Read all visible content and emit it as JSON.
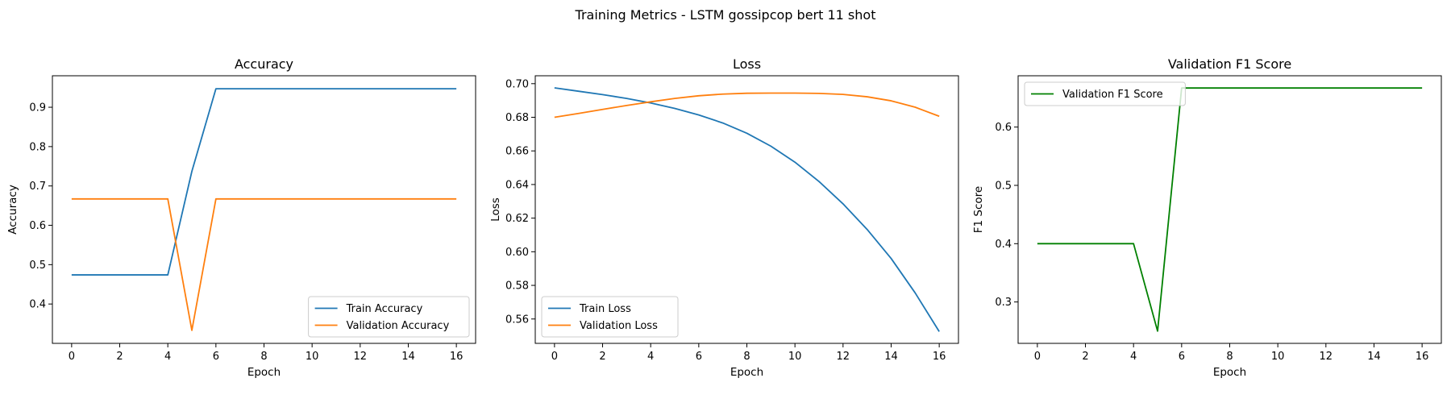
{
  "figure_title": "Training Metrics - LSTM gossipcop bert 11 shot",
  "chart_data": [
    {
      "type": "line",
      "title": "Accuracy",
      "xlabel": "Epoch",
      "ylabel": "Accuracy",
      "xlim": [
        -0.8,
        16.8
      ],
      "ylim": [
        0.3,
        0.98
      ],
      "xticks": [
        0,
        2,
        4,
        6,
        8,
        10,
        12,
        14,
        16
      ],
      "yticks": [
        0.4,
        0.5,
        0.6,
        0.7,
        0.8,
        0.9
      ],
      "ytick_labels": [
        "0.4",
        "0.5",
        "0.6",
        "0.7",
        "0.8",
        "0.9"
      ],
      "legend_loc": "lower-right",
      "x": [
        0,
        1,
        2,
        3,
        4,
        5,
        6,
        7,
        8,
        9,
        10,
        11,
        12,
        13,
        14,
        15,
        16
      ],
      "series": [
        {
          "name": "Train Accuracy",
          "color": "#1f77b4",
          "values": [
            0.474,
            0.474,
            0.474,
            0.474,
            0.474,
            0.737,
            0.947,
            0.947,
            0.947,
            0.947,
            0.947,
            0.947,
            0.947,
            0.947,
            0.947,
            0.947,
            0.947
          ]
        },
        {
          "name": "Validation Accuracy",
          "color": "#ff7f0e",
          "values": [
            0.667,
            0.667,
            0.667,
            0.667,
            0.667,
            0.333,
            0.667,
            0.667,
            0.667,
            0.667,
            0.667,
            0.667,
            0.667,
            0.667,
            0.667,
            0.667,
            0.667
          ]
        }
      ]
    },
    {
      "type": "line",
      "title": "Loss",
      "xlabel": "Epoch",
      "ylabel": "Loss",
      "xlim": [
        -0.8,
        16.8
      ],
      "ylim": [
        0.5455,
        0.7047
      ],
      "xticks": [
        0,
        2,
        4,
        6,
        8,
        10,
        12,
        14,
        16
      ],
      "yticks": [
        0.56,
        0.58,
        0.6,
        0.62,
        0.64,
        0.66,
        0.68,
        0.7
      ],
      "ytick_labels": [
        "0.56",
        "0.58",
        "0.60",
        "0.62",
        "0.64",
        "0.66",
        "0.68",
        "0.70"
      ],
      "legend_loc": "lower-left",
      "x": [
        0,
        1,
        2,
        3,
        4,
        5,
        6,
        7,
        8,
        9,
        10,
        11,
        12,
        13,
        14,
        15,
        16
      ],
      "series": [
        {
          "name": "Train Loss",
          "color": "#1f77b4",
          "values": [
            0.6975,
            0.6955,
            0.6935,
            0.6912,
            0.6885,
            0.6853,
            0.6814,
            0.6766,
            0.6705,
            0.6628,
            0.6533,
            0.6418,
            0.6285,
            0.6133,
            0.596,
            0.5755,
            0.5525
          ]
        },
        {
          "name": "Validation Loss",
          "color": "#ff7f0e",
          "values": [
            0.68,
            0.6823,
            0.6847,
            0.687,
            0.6892,
            0.6912,
            0.6928,
            0.6938,
            0.6943,
            0.6944,
            0.6944,
            0.6942,
            0.6936,
            0.6922,
            0.6898,
            0.686,
            0.6806
          ]
        }
      ]
    },
    {
      "type": "line",
      "title": "Validation F1 Score",
      "xlabel": "Epoch",
      "ylabel": "F1 Score",
      "xlim": [
        -0.8,
        16.8
      ],
      "ylim": [
        0.229,
        0.688
      ],
      "xticks": [
        0,
        2,
        4,
        6,
        8,
        10,
        12,
        14,
        16
      ],
      "yticks": [
        0.3,
        0.4,
        0.5,
        0.6
      ],
      "ytick_labels": [
        "0.3",
        "0.4",
        "0.5",
        "0.6"
      ],
      "legend_loc": "upper-left",
      "x": [
        0,
        1,
        2,
        3,
        4,
        5,
        6,
        7,
        8,
        9,
        10,
        11,
        12,
        13,
        14,
        15,
        16
      ],
      "series": [
        {
          "name": "Validation F1 Score",
          "color": "#008000",
          "values": [
            0.4,
            0.4,
            0.4,
            0.4,
            0.4,
            0.25,
            0.667,
            0.667,
            0.667,
            0.667,
            0.667,
            0.667,
            0.667,
            0.667,
            0.667,
            0.667,
            0.667
          ]
        }
      ]
    }
  ]
}
